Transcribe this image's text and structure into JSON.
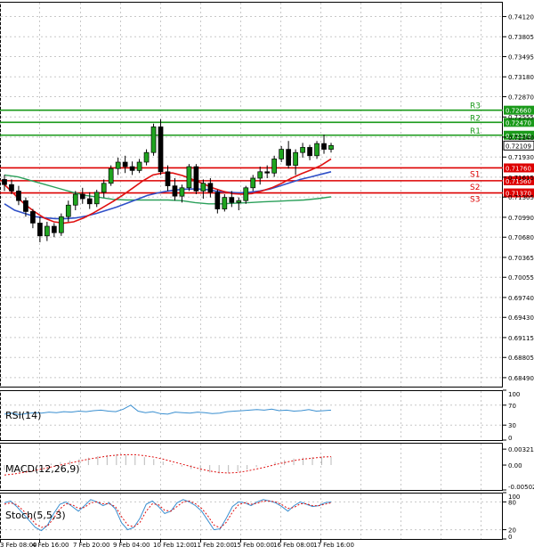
{
  "chart_data": {
    "type": "candlestick",
    "price_axis": {
      "ticks": [
        "0.74120",
        "0.73805",
        "0.73495",
        "0.73180",
        "0.72870",
        "0.72555",
        "0.72240",
        "0.71930",
        "0.71615",
        "0.71305",
        "0.70990",
        "0.70680",
        "0.70365",
        "0.70055",
        "0.69740",
        "0.69430",
        "0.69115",
        "0.68805",
        "0.68490"
      ],
      "range": [
        0.6835,
        0.7435
      ],
      "current_price": "0.72109"
    },
    "levels": [
      {
        "name": "R3",
        "value": 0.7266,
        "label": "0.72660",
        "color": "#1a9a1a"
      },
      {
        "name": "R2",
        "value": 0.7247,
        "label": "0.72470",
        "color": "#1a9a1a"
      },
      {
        "name": "R1",
        "value": 0.7227,
        "label": "0.72270",
        "color": "#1a9a1a"
      },
      {
        "name": "S1",
        "value": 0.7176,
        "label": "0.71760",
        "color": "#dd0000"
      },
      {
        "name": "S2",
        "value": 0.7156,
        "label": "0.71560",
        "color": "#dd0000"
      },
      {
        "name": "S3",
        "value": 0.7137,
        "label": "0.71370",
        "color": "#dd0000"
      }
    ],
    "candles": [
      [
        0.7158,
        0.7165,
        0.714,
        0.715
      ],
      [
        0.715,
        0.7158,
        0.7135,
        0.714
      ],
      [
        0.714,
        0.7148,
        0.7118,
        0.7125
      ],
      [
        0.7125,
        0.713,
        0.71,
        0.7108
      ],
      [
        0.7108,
        0.7112,
        0.7082,
        0.709
      ],
      [
        0.709,
        0.71,
        0.706,
        0.707
      ],
      [
        0.707,
        0.7092,
        0.7062,
        0.7085
      ],
      [
        0.7085,
        0.709,
        0.7068,
        0.7075
      ],
      [
        0.7075,
        0.7105,
        0.707,
        0.71
      ],
      [
        0.71,
        0.7125,
        0.7092,
        0.7118
      ],
      [
        0.7118,
        0.714,
        0.711,
        0.7135
      ],
      [
        0.7135,
        0.7145,
        0.712,
        0.7128
      ],
      [
        0.7128,
        0.7138,
        0.7112,
        0.712
      ],
      [
        0.712,
        0.7142,
        0.7115,
        0.7138
      ],
      [
        0.7138,
        0.7158,
        0.713,
        0.7152
      ],
      [
        0.7152,
        0.718,
        0.7148,
        0.7175
      ],
      [
        0.7175,
        0.7192,
        0.7165,
        0.7185
      ],
      [
        0.7185,
        0.7195,
        0.7168,
        0.7178
      ],
      [
        0.7178,
        0.7186,
        0.7165,
        0.7172
      ],
      [
        0.7172,
        0.719,
        0.7168,
        0.7185
      ],
      [
        0.7185,
        0.7205,
        0.718,
        0.72
      ],
      [
        0.72,
        0.7245,
        0.7195,
        0.724
      ],
      [
        0.724,
        0.7252,
        0.7165,
        0.717
      ],
      [
        0.717,
        0.718,
        0.714,
        0.7148
      ],
      [
        0.7148,
        0.716,
        0.7125,
        0.7132
      ],
      [
        0.7132,
        0.715,
        0.7122,
        0.7145
      ],
      [
        0.7145,
        0.7182,
        0.714,
        0.7178
      ],
      [
        0.7178,
        0.7182,
        0.7135,
        0.714
      ],
      [
        0.714,
        0.7158,
        0.7128,
        0.7152
      ],
      [
        0.7152,
        0.716,
        0.713,
        0.7138
      ],
      [
        0.7138,
        0.7142,
        0.7105,
        0.7112
      ],
      [
        0.7112,
        0.7135,
        0.7108,
        0.713
      ],
      [
        0.713,
        0.714,
        0.7115,
        0.7122
      ],
      [
        0.7122,
        0.713,
        0.711,
        0.7125
      ],
      [
        0.7125,
        0.7148,
        0.712,
        0.7145
      ],
      [
        0.7145,
        0.7165,
        0.714,
        0.716
      ],
      [
        0.716,
        0.7178,
        0.715,
        0.717
      ],
      [
        0.717,
        0.718,
        0.716,
        0.7168
      ],
      [
        0.7168,
        0.7195,
        0.7162,
        0.719
      ],
      [
        0.719,
        0.721,
        0.7185,
        0.7205
      ],
      [
        0.7205,
        0.7218,
        0.7175,
        0.718
      ],
      [
        0.718,
        0.7205,
        0.7165,
        0.72
      ],
      [
        0.72,
        0.7215,
        0.7192,
        0.7208
      ],
      [
        0.7208,
        0.7212,
        0.7188,
        0.7195
      ],
      [
        0.7195,
        0.7218,
        0.719,
        0.7214
      ],
      [
        0.7214,
        0.7228,
        0.7198,
        0.7205
      ],
      [
        0.7205,
        0.7215,
        0.72,
        0.7211
      ]
    ],
    "sma_fast": [
      0.715,
      0.7135,
      0.712,
      0.7108,
      0.7098,
      0.7092,
      0.709,
      0.7092,
      0.7098,
      0.7106,
      0.7115,
      0.7124,
      0.7134,
      0.7145,
      0.7156,
      0.7165,
      0.7168,
      0.7168,
      0.7164,
      0.7158,
      0.7152,
      0.7145,
      0.714,
      0.7136,
      0.7135,
      0.7136,
      0.714,
      0.7145,
      0.7152,
      0.716,
      0.7167,
      0.7173,
      0.718,
      0.719
    ],
    "sma_mid": [
      0.712,
      0.711,
      0.7105,
      0.71,
      0.7098,
      0.7097,
      0.7097,
      0.7098,
      0.7101,
      0.7105,
      0.711,
      0.7115,
      0.7121,
      0.7127,
      0.7133,
      0.7137,
      0.714,
      0.7142,
      0.7143,
      0.7143,
      0.7142,
      0.7139,
      0.7138,
      0.7137,
      0.7138,
      0.714,
      0.7143,
      0.7148,
      0.7153,
      0.7158,
      0.7162,
      0.7166,
      0.717
    ],
    "sma_slow": [
      0.7165,
      0.7162,
      0.7156,
      0.715,
      0.7144,
      0.7138,
      0.7133,
      0.713,
      0.7127,
      0.7126,
      0.7126,
      0.7126,
      0.7126,
      0.7125,
      0.7122,
      0.712,
      0.712,
      0.7121,
      0.7122,
      0.7123,
      0.7124,
      0.7125,
      0.7126,
      0.7128,
      0.7131
    ],
    "x_labels": [
      "3 Feb 08:00",
      "4 Feb 16:00",
      "7 Feb 20:00",
      "9 Feb 04:00",
      "10 Feb 12:00",
      "11 Feb 20:00",
      "15 Feb 00:00",
      "16 Feb 08:00",
      "17 Feb 16:00"
    ],
    "rsi": {
      "label": "RSI(14)",
      "ticks": [
        "100",
        "70",
        "30",
        "0"
      ],
      "values": [
        52,
        54,
        51,
        53,
        55,
        54,
        56,
        55,
        57,
        56,
        58,
        57,
        59,
        60,
        58,
        57,
        62,
        70,
        58,
        55,
        57,
        53,
        52,
        56,
        55,
        54,
        56,
        55,
        53,
        54,
        57,
        58,
        59,
        60,
        61,
        60,
        62,
        59,
        60,
        58,
        59,
        61,
        58,
        59,
        60
      ]
    },
    "macd": {
      "label": "MACD(12,26,9)",
      "ticks": [
        "0.003217",
        "0.00",
        "-0.005021"
      ],
      "histogram": [
        -0.001,
        -0.0008,
        -0.0006,
        -0.0003,
        0.0,
        0.0003,
        0.0006,
        0.0009,
        0.0012,
        0.0015,
        0.0018,
        0.002,
        0.0022,
        0.0021,
        0.0019,
        0.0016,
        0.0012,
        0.0007,
        0.0002,
        -0.0003,
        -0.0008,
        -0.0012,
        -0.0015,
        -0.0017,
        -0.0016,
        -0.0013,
        -0.0009,
        -0.0004,
        0.0001,
        0.0006,
        0.001,
        0.0013,
        0.0015,
        0.0016,
        0.0017,
        0.0017
      ],
      "signal": [
        -0.002,
        -0.0018,
        -0.0015,
        -0.0012,
        -0.0008,
        -0.0004,
        0.0,
        0.0004,
        0.0008,
        0.0012,
        0.0015,
        0.0018,
        0.002,
        0.0021,
        0.0021,
        0.0019,
        0.0016,
        0.0012,
        0.0007,
        0.0002,
        -0.0003,
        -0.0008,
        -0.0012,
        -0.0015,
        -0.0016,
        -0.0015,
        -0.0012,
        -0.0008,
        -0.0004,
        0.0001,
        0.0005,
        0.0009,
        0.0012,
        0.0014,
        0.0016,
        0.0017
      ]
    },
    "stoch": {
      "label": "Stoch(5,5,3)",
      "ticks": [
        "100",
        "80",
        "20",
        "0"
      ],
      "main": [
        78,
        82,
        70,
        55,
        40,
        25,
        18,
        30,
        55,
        75,
        80,
        70,
        60,
        72,
        85,
        80,
        72,
        78,
        65,
        35,
        20,
        25,
        45,
        75,
        82,
        70,
        55,
        60,
        78,
        85,
        80,
        72,
        60,
        40,
        20,
        22,
        45,
        70,
        80,
        78,
        72,
        80,
        85,
        82,
        78,
        70,
        60,
        72,
        80,
        75,
        70,
        72,
        78,
        80
      ],
      "signal": [
        75,
        78,
        74,
        62,
        48,
        33,
        25,
        28,
        45,
        65,
        76,
        74,
        66,
        68,
        78,
        80,
        76,
        76,
        70,
        48,
        30,
        26,
        36,
        60,
        76,
        74,
        62,
        60,
        70,
        80,
        82,
        76,
        66,
        50,
        30,
        24,
        36,
        58,
        74,
        78,
        75,
        77,
        82,
        82,
        80,
        74,
        66,
        68,
        76,
        76,
        72,
        72,
        75,
        78
      ]
    }
  }
}
